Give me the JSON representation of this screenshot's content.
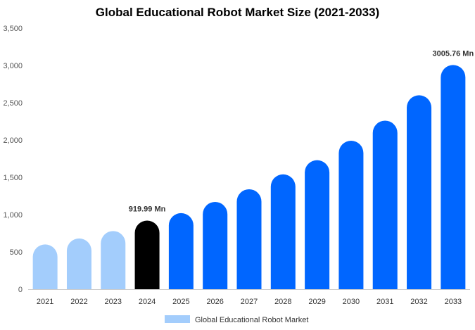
{
  "chart_data": {
    "type": "bar",
    "title": "Global Educational Robot Market Size (2021-2033)",
    "categories": [
      "2021",
      "2022",
      "2023",
      "2024",
      "2025",
      "2026",
      "2027",
      "2028",
      "2029",
      "2030",
      "2031",
      "2032",
      "2033"
    ],
    "series": [
      {
        "name": "Global Educational Robot Market",
        "values": [
          600,
          680,
          780,
          919.99,
          1020,
          1170,
          1340,
          1540,
          1730,
          1990,
          2260,
          2600,
          3005.76
        ]
      }
    ],
    "ylim": [
      0,
      3500
    ],
    "yticks": [
      0,
      500,
      1000,
      1500,
      2000,
      2500,
      3000,
      3500
    ],
    "ytick_labels": [
      "0",
      "500",
      "1,000",
      "1,500",
      "2,000",
      "2,500",
      "3,000",
      "3,500"
    ],
    "data_labels": [
      {
        "category": "2024",
        "text": "919.99 Mn"
      },
      {
        "category": "2033",
        "text": "3005.76 Mn"
      }
    ],
    "grid": false,
    "legend": "bottom-center",
    "colors": {
      "historical": "#a3cdfc",
      "current": "#000000",
      "forecast": "#0066ff",
      "legend_swatch": "#a3cdfc"
    }
  }
}
